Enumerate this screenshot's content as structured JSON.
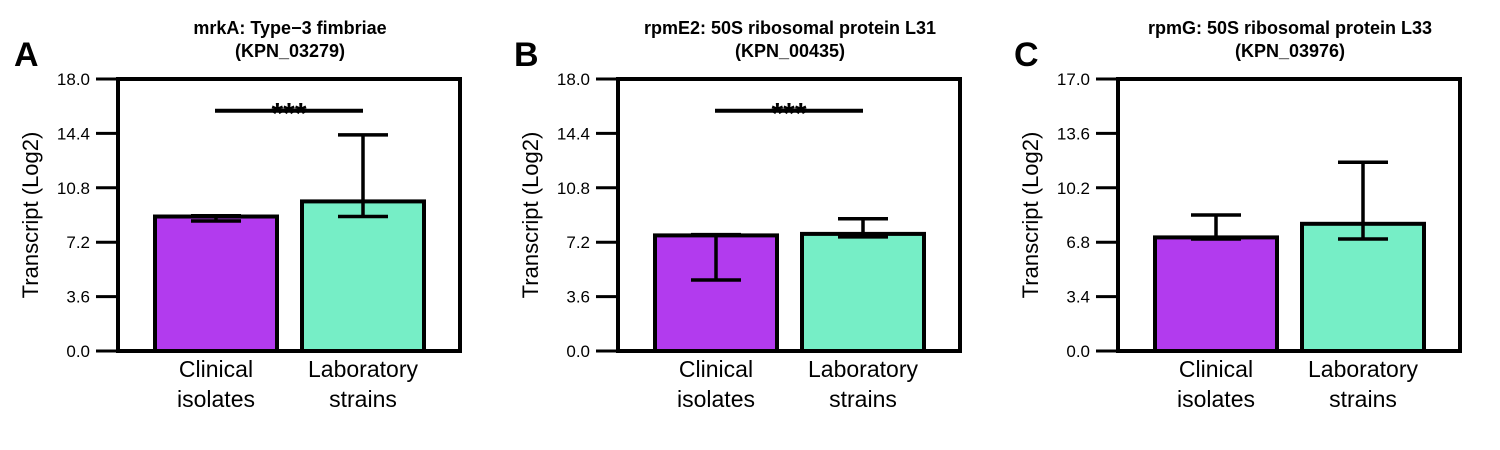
{
  "colors": {
    "clinical": "#b23bee",
    "laboratory": "#76eec6",
    "stroke": "#000000"
  },
  "chart_data": [
    {
      "type": "bar",
      "panel": "A",
      "title_line1": "mrkA: Type−3 fimbriae",
      "title_line2": "(KPN_03279)",
      "ylabel": "Transcript (Log2)",
      "ylim": [
        0,
        18
      ],
      "yticks": [
        "0.0",
        "3.6",
        "7.2",
        "10.8",
        "14.4",
        "18.0"
      ],
      "categories": [
        [
          "Clinical",
          "isolates"
        ],
        [
          "Laboratory",
          "strains"
        ]
      ],
      "values": [
        8.9,
        9.9
      ],
      "error_low": [
        8.6,
        8.9
      ],
      "error_high": [
        8.95,
        14.3
      ],
      "significance": "***",
      "sig_level": 15.9
    },
    {
      "type": "bar",
      "panel": "B",
      "title_line1": "rpmE2: 50S ribosomal protein L31",
      "title_line2": "(KPN_00435)",
      "ylabel": "Transcript (Log2)",
      "ylim": [
        0,
        18
      ],
      "yticks": [
        "0.0",
        "3.6",
        "7.2",
        "10.8",
        "14.4",
        "18.0"
      ],
      "categories": [
        [
          "Clinical",
          "isolates"
        ],
        [
          "Laboratory",
          "strains"
        ]
      ],
      "values": [
        7.65,
        7.75
      ],
      "error_low": [
        4.7,
        7.55
      ],
      "error_high": [
        7.7,
        8.75
      ],
      "significance": "***",
      "sig_level": 15.9
    },
    {
      "type": "bar",
      "panel": "C",
      "title_line1": "rpmG: 50S ribosomal protein L33",
      "title_line2": "(KPN_03976)",
      "ylabel": "Transcript (Log2)",
      "ylim": [
        0,
        17
      ],
      "yticks": [
        "0.0",
        "3.4",
        "6.8",
        "10.2",
        "13.6",
        "17.0"
      ],
      "categories": [
        [
          "Clinical",
          "isolates"
        ],
        [
          "Laboratory",
          "strains"
        ]
      ],
      "values": [
        7.1,
        7.95
      ],
      "error_low": [
        7.0,
        7.0
      ],
      "error_high": [
        8.5,
        11.8
      ],
      "significance": "",
      "sig_level": null
    }
  ]
}
